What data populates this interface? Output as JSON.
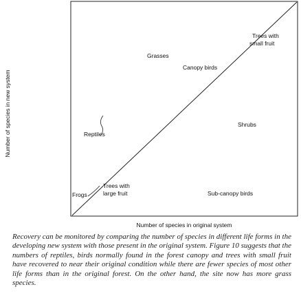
{
  "figure": {
    "y_label": "Number of species in new system",
    "x_label": "Number of species in original system",
    "labels": [
      "Trees with",
      "small fruit",
      "Grasses",
      "Canopy birds",
      "Shrubs",
      "Reptiles",
      "Trees with",
      "large fruit",
      "Frogs",
      "Sub-canopy birds"
    ]
  },
  "caption": "Recovery can be monitored by comparing the number of species in different life forms in the developing new system with those present in the original system. Figure 10 suggests that the numbers of reptiles, birds normally found in the forest canopy and trees with small fruit have recovered to near their original condition while there are fewer species of most other life forms than in the original forest. On the other hand, the site now has more grass species."
}
